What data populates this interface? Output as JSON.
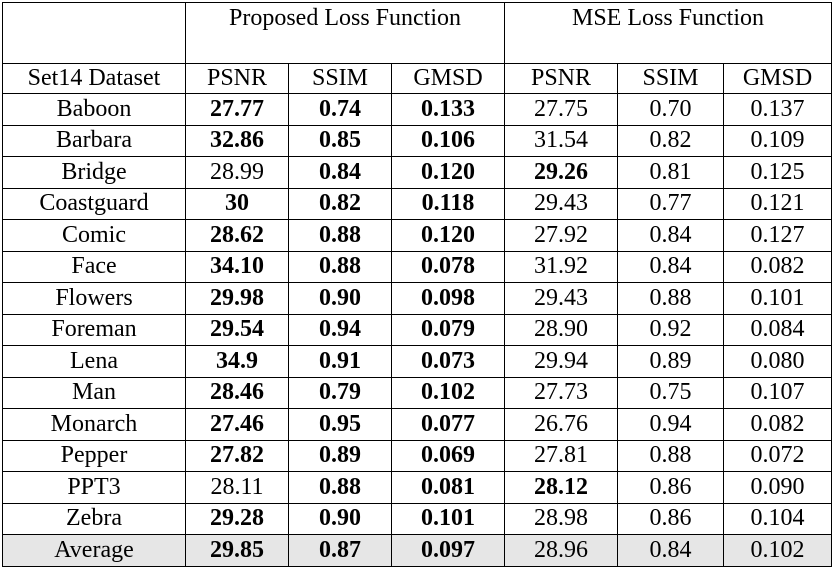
{
  "header": {
    "group_proposed": "Proposed Loss Function",
    "group_mse": "MSE Loss Function",
    "dataset_label": "Set14 Dataset",
    "metrics": [
      "PSNR",
      "SSIM",
      "GMSD",
      "PSNR",
      "SSIM",
      "GMSD"
    ]
  },
  "rows": [
    {
      "name": "Baboon",
      "vals": [
        "27.77",
        "0.74",
        "0.133",
        "27.75",
        "0.70",
        "0.137"
      ],
      "bold": [
        1,
        1,
        1,
        0,
        0,
        0
      ]
    },
    {
      "name": "Barbara",
      "vals": [
        "32.86",
        "0.85",
        "0.106",
        "31.54",
        "0.82",
        "0.109"
      ],
      "bold": [
        1,
        1,
        1,
        0,
        0,
        0
      ]
    },
    {
      "name": "Bridge",
      "vals": [
        "28.99",
        "0.84",
        "0.120",
        "29.26",
        "0.81",
        "0.125"
      ],
      "bold": [
        0,
        1,
        1,
        1,
        0,
        0
      ]
    },
    {
      "name": "Coastguard",
      "vals": [
        "30",
        "0.82",
        "0.118",
        "29.43",
        "0.77",
        "0.121"
      ],
      "bold": [
        1,
        1,
        1,
        0,
        0,
        0
      ]
    },
    {
      "name": "Comic",
      "vals": [
        "28.62",
        "0.88",
        "0.120",
        "27.92",
        "0.84",
        "0.127"
      ],
      "bold": [
        1,
        1,
        1,
        0,
        0,
        0
      ]
    },
    {
      "name": "Face",
      "vals": [
        "34.10",
        "0.88",
        "0.078",
        "31.92",
        "0.84",
        "0.082"
      ],
      "bold": [
        1,
        1,
        1,
        0,
        0,
        0
      ]
    },
    {
      "name": "Flowers",
      "vals": [
        "29.98",
        "0.90",
        "0.098",
        "29.43",
        "0.88",
        "0.101"
      ],
      "bold": [
        1,
        1,
        1,
        0,
        0,
        0
      ]
    },
    {
      "name": "Foreman",
      "vals": [
        "29.54",
        "0.94",
        "0.079",
        "28.90",
        "0.92",
        "0.084"
      ],
      "bold": [
        1,
        1,
        1,
        0,
        0,
        0
      ]
    },
    {
      "name": "Lena",
      "vals": [
        "34.9",
        "0.91",
        "0.073",
        "29.94",
        "0.89",
        "0.080"
      ],
      "bold": [
        1,
        1,
        1,
        0,
        0,
        0
      ]
    },
    {
      "name": "Man",
      "vals": [
        "28.46",
        "0.79",
        "0.102",
        "27.73",
        "0.75",
        "0.107"
      ],
      "bold": [
        1,
        1,
        1,
        0,
        0,
        0
      ]
    },
    {
      "name": "Monarch",
      "vals": [
        "27.46",
        "0.95",
        "0.077",
        "26.76",
        "0.94",
        "0.082"
      ],
      "bold": [
        1,
        1,
        1,
        0,
        0,
        0
      ]
    },
    {
      "name": "Pepper",
      "vals": [
        "27.82",
        "0.89",
        "0.069",
        "27.81",
        "0.88",
        "0.072"
      ],
      "bold": [
        1,
        1,
        1,
        0,
        0,
        0
      ]
    },
    {
      "name": "PPT3",
      "vals": [
        "28.11",
        "0.88",
        "0.081",
        "28.12",
        "0.86",
        "0.090"
      ],
      "bold": [
        0,
        1,
        1,
        1,
        0,
        0
      ]
    },
    {
      "name": "Zebra",
      "vals": [
        "29.28",
        "0.90",
        "0.101",
        "28.98",
        "0.86",
        "0.104"
      ],
      "bold": [
        1,
        1,
        1,
        0,
        0,
        0
      ]
    }
  ],
  "average": {
    "name": "Average",
    "vals": [
      "29.85",
      "0.87",
      "0.097",
      "28.96",
      "0.84",
      "0.102"
    ],
    "bold": [
      1,
      1,
      1,
      0,
      0,
      0
    ],
    "shade": "#e6e6e6"
  }
}
